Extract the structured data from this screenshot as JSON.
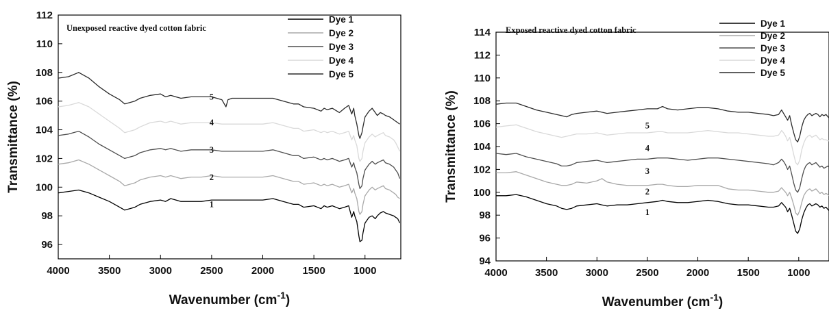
{
  "chart_data": [
    {
      "type": "line",
      "title": "Unexposed reactive dyed cotton fabric",
      "xlabel": "Wavenumber (cm",
      "xlabel_sup": "-1",
      "xlabel_end": ")",
      "ylabel": "Transmittance (%)",
      "xlim": [
        4000,
        650
      ],
      "ylim": [
        95,
        112
      ],
      "xticks": [
        4000,
        3500,
        3000,
        2500,
        2000,
        1500,
        1000
      ],
      "yticks": [
        96,
        98,
        100,
        102,
        104,
        106,
        108,
        110,
        112
      ],
      "legend_position": "top-right",
      "colors": {
        "Dye 1": "#000000",
        "Dye 2": "#a8a8a8",
        "Dye 3": "#4d4d4d",
        "Dye 4": "#d9d9d9",
        "Dye 5": "#2a2a2a"
      },
      "curve_labels": [
        {
          "text": "1",
          "x": 2500,
          "y": 98.6
        },
        {
          "text": "2",
          "x": 2500,
          "y": 100.5
        },
        {
          "text": "3",
          "x": 2500,
          "y": 102.4
        },
        {
          "text": "4",
          "x": 2500,
          "y": 104.3
        },
        {
          "text": "5",
          "x": 2500,
          "y": 106.1
        }
      ],
      "x": [
        4000,
        3900,
        3800,
        3700,
        3600,
        3500,
        3400,
        3350,
        3300,
        3250,
        3200,
        3100,
        3000,
        2950,
        2900,
        2800,
        2700,
        2600,
        2500,
        2400,
        2360,
        2340,
        2300,
        2200,
        2100,
        2000,
        1900,
        1800,
        1700,
        1650,
        1600,
        1500,
        1430,
        1400,
        1370,
        1320,
        1250,
        1200,
        1160,
        1130,
        1110,
        1100,
        1080,
        1060,
        1050,
        1030,
        1020,
        1000,
        960,
        930,
        900,
        880,
        850,
        820,
        800,
        760,
        720,
        700,
        680,
        660
      ],
      "series": [
        {
          "name": "Dye 1",
          "values": [
            99.6,
            99.7,
            99.8,
            99.6,
            99.3,
            99.0,
            98.6,
            98.4,
            98.5,
            98.6,
            98.8,
            99.0,
            99.1,
            99.0,
            99.2,
            99.0,
            99.0,
            99.0,
            99.1,
            99.1,
            99.1,
            99.1,
            99.1,
            99.1,
            99.1,
            99.1,
            99.2,
            99.0,
            98.8,
            98.8,
            98.6,
            98.7,
            98.5,
            98.7,
            98.6,
            98.7,
            98.5,
            98.6,
            98.7,
            97.9,
            98.3,
            98.0,
            97.6,
            96.6,
            96.2,
            96.3,
            96.8,
            97.5,
            97.9,
            98.0,
            97.8,
            98.0,
            98.2,
            98.3,
            98.2,
            98.1,
            98.0,
            97.9,
            97.8,
            97.5
          ]
        },
        {
          "name": "Dye 2",
          "values": [
            101.6,
            101.7,
            101.9,
            101.6,
            101.2,
            100.8,
            100.4,
            100.1,
            100.2,
            100.3,
            100.5,
            100.7,
            100.8,
            100.7,
            100.8,
            100.6,
            100.7,
            100.7,
            100.8,
            100.7,
            100.7,
            100.7,
            100.7,
            100.7,
            100.7,
            100.7,
            100.8,
            100.6,
            100.4,
            100.4,
            100.2,
            100.3,
            100.1,
            100.2,
            100.1,
            100.2,
            100.0,
            100.1,
            100.2,
            99.6,
            99.9,
            99.6,
            99.2,
            98.3,
            98.1,
            98.3,
            98.8,
            99.4,
            99.8,
            100.0,
            99.8,
            99.9,
            100.0,
            100.1,
            99.9,
            99.8,
            99.6,
            99.5,
            99.3,
            99.2
          ]
        },
        {
          "name": "Dye 3",
          "values": [
            103.6,
            103.7,
            103.9,
            103.5,
            103.0,
            102.6,
            102.2,
            102.0,
            102.1,
            102.2,
            102.4,
            102.6,
            102.7,
            102.6,
            102.7,
            102.5,
            102.6,
            102.6,
            102.6,
            102.5,
            102.5,
            102.5,
            102.5,
            102.5,
            102.5,
            102.5,
            102.6,
            102.4,
            102.2,
            102.2,
            102.0,
            102.1,
            101.9,
            102.0,
            101.9,
            102.0,
            101.8,
            101.9,
            102.0,
            101.4,
            101.7,
            101.4,
            101.0,
            100.2,
            99.9,
            100.1,
            100.6,
            101.2,
            101.6,
            101.8,
            101.6,
            101.7,
            101.8,
            101.9,
            101.7,
            101.6,
            101.4,
            101.2,
            101.0,
            100.6
          ]
        },
        {
          "name": "Dye 4",
          "values": [
            105.6,
            105.7,
            105.9,
            105.6,
            105.1,
            104.6,
            104.1,
            103.8,
            103.9,
            104.0,
            104.2,
            104.5,
            104.6,
            104.5,
            104.6,
            104.4,
            104.5,
            104.5,
            104.5,
            104.4,
            104.4,
            104.4,
            104.4,
            104.4,
            104.4,
            104.4,
            104.5,
            104.3,
            104.1,
            104.1,
            103.9,
            104.0,
            103.8,
            103.9,
            103.8,
            103.9,
            103.7,
            103.8,
            103.9,
            103.3,
            103.6,
            103.3,
            102.9,
            102.0,
            101.8,
            102.0,
            102.5,
            103.1,
            103.5,
            103.7,
            103.5,
            103.6,
            103.7,
            103.8,
            103.6,
            103.5,
            103.3,
            103.1,
            102.8,
            102.5
          ]
        },
        {
          "name": "Dye 5",
          "values": [
            107.6,
            107.7,
            108.0,
            107.6,
            107.0,
            106.5,
            106.1,
            105.8,
            105.9,
            106.0,
            106.2,
            106.4,
            106.5,
            106.3,
            106.4,
            106.2,
            106.3,
            106.3,
            106.3,
            106.1,
            105.6,
            106.1,
            106.2,
            106.2,
            106.2,
            106.2,
            106.2,
            106.0,
            105.8,
            105.8,
            105.6,
            105.5,
            105.3,
            105.5,
            105.4,
            105.5,
            105.2,
            105.5,
            105.7,
            105.1,
            105.5,
            105.0,
            104.4,
            103.6,
            103.4,
            103.8,
            104.2,
            104.9,
            105.3,
            105.5,
            105.2,
            105.0,
            105.2,
            105.1,
            105.0,
            104.9,
            104.7,
            104.6,
            104.5,
            104.4
          ]
        }
      ]
    },
    {
      "type": "line",
      "title": "Exposed reactive dyed cotton fabric",
      "xlabel": "Wavenumber (cm",
      "xlabel_sup": "-1",
      "xlabel_end": ")",
      "ylabel": "Transmittance (%)",
      "xlim": [
        4000,
        700
      ],
      "ylim": [
        94,
        114
      ],
      "xticks": [
        4000,
        3500,
        3000,
        2500,
        2000,
        1500,
        1000
      ],
      "yticks": [
        94,
        96,
        98,
        100,
        102,
        104,
        106,
        108,
        110,
        112,
        114
      ],
      "legend_position": "top-right",
      "colors": {
        "Dye 1": "#000000",
        "Dye 2": "#a8a8a8",
        "Dye 3": "#4d4d4d",
        "Dye 4": "#d9d9d9",
        "Dye 5": "#2a2a2a"
      },
      "curve_labels": [
        {
          "text": "1",
          "x": 2500,
          "y": 98.0
        },
        {
          "text": "2",
          "x": 2500,
          "y": 99.8
        },
        {
          "text": "3",
          "x": 2500,
          "y": 101.6
        },
        {
          "text": "4",
          "x": 2500,
          "y": 103.6
        },
        {
          "text": "5",
          "x": 2500,
          "y": 105.6
        }
      ],
      "x": [
        4000,
        3900,
        3800,
        3700,
        3600,
        3500,
        3400,
        3350,
        3300,
        3250,
        3200,
        3100,
        3000,
        2950,
        2900,
        2800,
        2700,
        2600,
        2500,
        2400,
        2350,
        2300,
        2200,
        2100,
        2000,
        1900,
        1800,
        1700,
        1600,
        1500,
        1400,
        1300,
        1250,
        1200,
        1170,
        1150,
        1130,
        1110,
        1090,
        1070,
        1050,
        1030,
        1010,
        990,
        970,
        950,
        930,
        910,
        890,
        870,
        850,
        830,
        810,
        790,
        770,
        750,
        730,
        710,
        700
      ],
      "series": [
        {
          "name": "Dye 1",
          "values": [
            99.7,
            99.7,
            99.8,
            99.6,
            99.3,
            99.0,
            98.8,
            98.6,
            98.5,
            98.6,
            98.8,
            98.9,
            99.0,
            98.9,
            98.8,
            98.9,
            98.9,
            99.0,
            99.1,
            99.2,
            99.3,
            99.2,
            99.1,
            99.1,
            99.2,
            99.3,
            99.2,
            99.0,
            98.9,
            98.9,
            98.8,
            98.7,
            98.7,
            98.8,
            99.1,
            98.9,
            98.7,
            98.3,
            98.6,
            98.0,
            97.3,
            96.6,
            96.4,
            96.8,
            97.6,
            98.2,
            98.6,
            98.9,
            99.0,
            98.8,
            98.9,
            99.0,
            98.9,
            98.7,
            98.8,
            98.6,
            98.7,
            98.5,
            98.4
          ]
        },
        {
          "name": "Dye 2",
          "values": [
            101.7,
            101.7,
            101.8,
            101.5,
            101.2,
            100.9,
            100.7,
            100.6,
            100.6,
            100.7,
            100.9,
            100.8,
            101.0,
            101.2,
            100.9,
            100.7,
            100.6,
            100.6,
            100.6,
            100.7,
            100.7,
            100.6,
            100.5,
            100.5,
            100.6,
            100.6,
            100.6,
            100.3,
            100.2,
            100.2,
            100.1,
            100.0,
            100.0,
            100.1,
            100.4,
            100.2,
            100.0,
            99.7,
            100.0,
            99.5,
            98.9,
            98.2,
            98.0,
            98.4,
            99.1,
            99.7,
            100.0,
            100.2,
            100.3,
            100.1,
            100.2,
            100.3,
            100.1,
            99.9,
            100.0,
            99.8,
            99.9,
            99.8,
            99.7
          ]
        },
        {
          "name": "Dye 3",
          "values": [
            103.4,
            103.3,
            103.4,
            103.1,
            102.9,
            102.7,
            102.5,
            102.3,
            102.3,
            102.4,
            102.6,
            102.7,
            102.8,
            102.7,
            102.6,
            102.7,
            102.8,
            102.9,
            102.9,
            103.0,
            103.0,
            103.0,
            102.9,
            102.8,
            102.9,
            103.0,
            103.0,
            102.9,
            102.8,
            102.7,
            102.6,
            102.5,
            102.4,
            102.6,
            102.9,
            102.7,
            102.4,
            102.0,
            102.3,
            101.6,
            100.8,
            100.2,
            100.0,
            100.4,
            101.2,
            101.9,
            102.3,
            102.5,
            102.6,
            102.4,
            102.5,
            102.6,
            102.4,
            102.2,
            102.3,
            102.1,
            102.2,
            102.3,
            102.2
          ]
        },
        {
          "name": "Dye 4",
          "values": [
            105.7,
            105.8,
            105.9,
            105.6,
            105.3,
            105.1,
            104.9,
            104.8,
            104.9,
            105.0,
            105.1,
            105.1,
            105.2,
            105.1,
            105.0,
            105.1,
            105.2,
            105.2,
            105.2,
            105.3,
            105.3,
            105.2,
            105.2,
            105.2,
            105.3,
            105.4,
            105.3,
            105.2,
            105.2,
            105.1,
            105.0,
            104.9,
            104.9,
            105.0,
            105.4,
            105.2,
            104.9,
            104.5,
            104.8,
            104.1,
            103.3,
            102.6,
            102.4,
            102.8,
            103.7,
            104.3,
            104.7,
            104.9,
            105.0,
            104.8,
            104.9,
            105.0,
            104.8,
            104.6,
            104.7,
            104.6,
            104.6,
            104.5,
            104.5
          ]
        },
        {
          "name": "Dye 5",
          "values": [
            107.7,
            107.8,
            107.8,
            107.5,
            107.2,
            107.0,
            106.8,
            106.7,
            106.6,
            106.8,
            106.9,
            107.0,
            107.1,
            107.0,
            106.9,
            107.0,
            107.1,
            107.2,
            107.3,
            107.3,
            107.5,
            107.3,
            107.2,
            107.3,
            107.4,
            107.4,
            107.3,
            107.1,
            107.0,
            107.0,
            106.9,
            106.8,
            106.7,
            106.8,
            107.2,
            106.9,
            106.6,
            106.3,
            106.7,
            105.9,
            105.2,
            104.6,
            104.4,
            104.9,
            105.7,
            106.3,
            106.6,
            106.8,
            106.9,
            106.7,
            106.8,
            106.9,
            106.8,
            106.6,
            106.8,
            106.7,
            106.8,
            106.6,
            106.5
          ]
        }
      ]
    }
  ]
}
